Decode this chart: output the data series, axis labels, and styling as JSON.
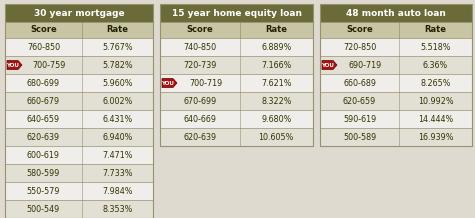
{
  "bg_color": "#dedad0",
  "header_bg": "#6b6b3a",
  "header_text_color": "#ffffff",
  "col_header_bg": "#c8c5a4",
  "col_header_text_color": "#222200",
  "row_bg_white": "#f0eeea",
  "row_bg_light": "#e2dfd4",
  "border_color": "#999070",
  "text_color": "#333300",
  "you_arrow_color": "#aa1111",
  "tables": [
    {
      "title": "30 year mortgage",
      "col1": "Score",
      "col2": "Rate",
      "you_row": 1,
      "rows": [
        [
          "760-850",
          "5.767%"
        ],
        [
          "700-759",
          "5.782%"
        ],
        [
          "680-699",
          "5.960%"
        ],
        [
          "660-679",
          "6.002%"
        ],
        [
          "640-659",
          "6.431%"
        ],
        [
          "620-639",
          "6.940%"
        ],
        [
          "600-619",
          "7.471%"
        ],
        [
          "580-599",
          "7.733%"
        ],
        [
          "550-579",
          "7.984%"
        ],
        [
          "500-549",
          "8.353%"
        ]
      ]
    },
    {
      "title": "15 year home equity loan",
      "col1": "Score",
      "col2": "Rate",
      "you_row": 2,
      "rows": [
        [
          "740-850",
          "6.889%"
        ],
        [
          "720-739",
          "7.166%"
        ],
        [
          "700-719",
          "7.621%"
        ],
        [
          "670-699",
          "8.322%"
        ],
        [
          "640-669",
          "9.680%"
        ],
        [
          "620-639",
          "10.605%"
        ]
      ]
    },
    {
      "title": "48 month auto loan",
      "col1": "Score",
      "col2": "Rate",
      "you_row": 1,
      "rows": [
        [
          "720-850",
          "5.518%"
        ],
        [
          "690-719",
          "6.36%"
        ],
        [
          "660-689",
          "8.265%"
        ],
        [
          "620-659",
          "10.992%"
        ],
        [
          "590-619",
          "14.444%"
        ],
        [
          "500-589",
          "16.939%"
        ]
      ]
    }
  ]
}
